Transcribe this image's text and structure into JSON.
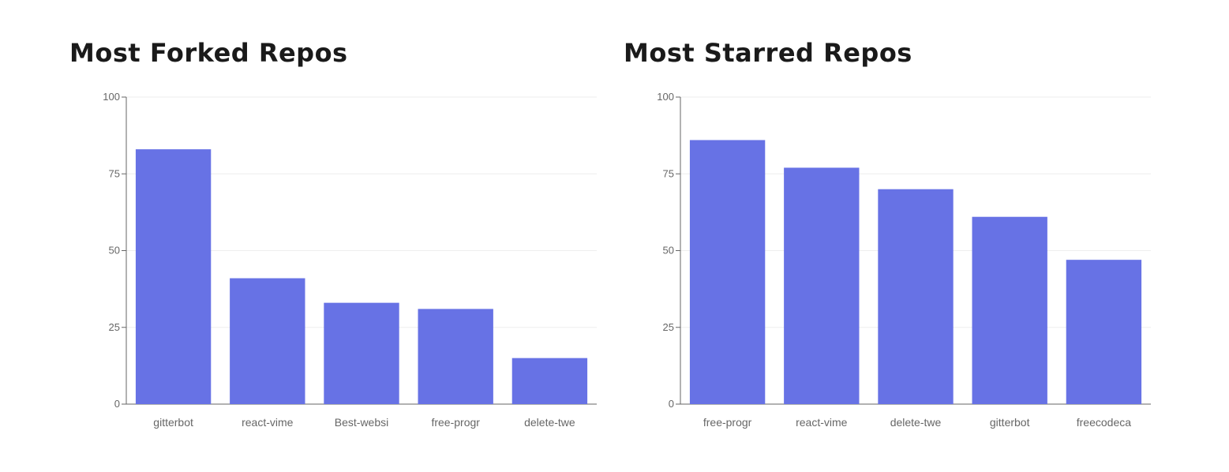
{
  "chart_data": [
    {
      "type": "bar",
      "title": "Most Forked Repos",
      "categories": [
        "gitterbot",
        "react-vime",
        "Best-websi",
        "free-progr",
        "delete-twe"
      ],
      "values": [
        83,
        41,
        33,
        31,
        15
      ],
      "ylim": [
        0,
        100
      ],
      "yticks": [
        0,
        25,
        50,
        75,
        100
      ],
      "xlabel": "",
      "ylabel": "",
      "grid": true,
      "bar_color": "#6772e5"
    },
    {
      "type": "bar",
      "title": "Most Starred Repos",
      "categories": [
        "free-progr",
        "react-vime",
        "delete-twe",
        "gitterbot",
        "freecodeca"
      ],
      "values": [
        86,
        77,
        70,
        61,
        47
      ],
      "ylim": [
        0,
        100
      ],
      "yticks": [
        0,
        25,
        50,
        75,
        100
      ],
      "xlabel": "",
      "ylabel": "",
      "grid": true,
      "bar_color": "#6772e5"
    }
  ],
  "colors": {
    "bar": "#6772e5",
    "grid": "#eeeeee",
    "axis": "#666666",
    "tick_text": "#666666",
    "title": "#1a1a1a"
  }
}
